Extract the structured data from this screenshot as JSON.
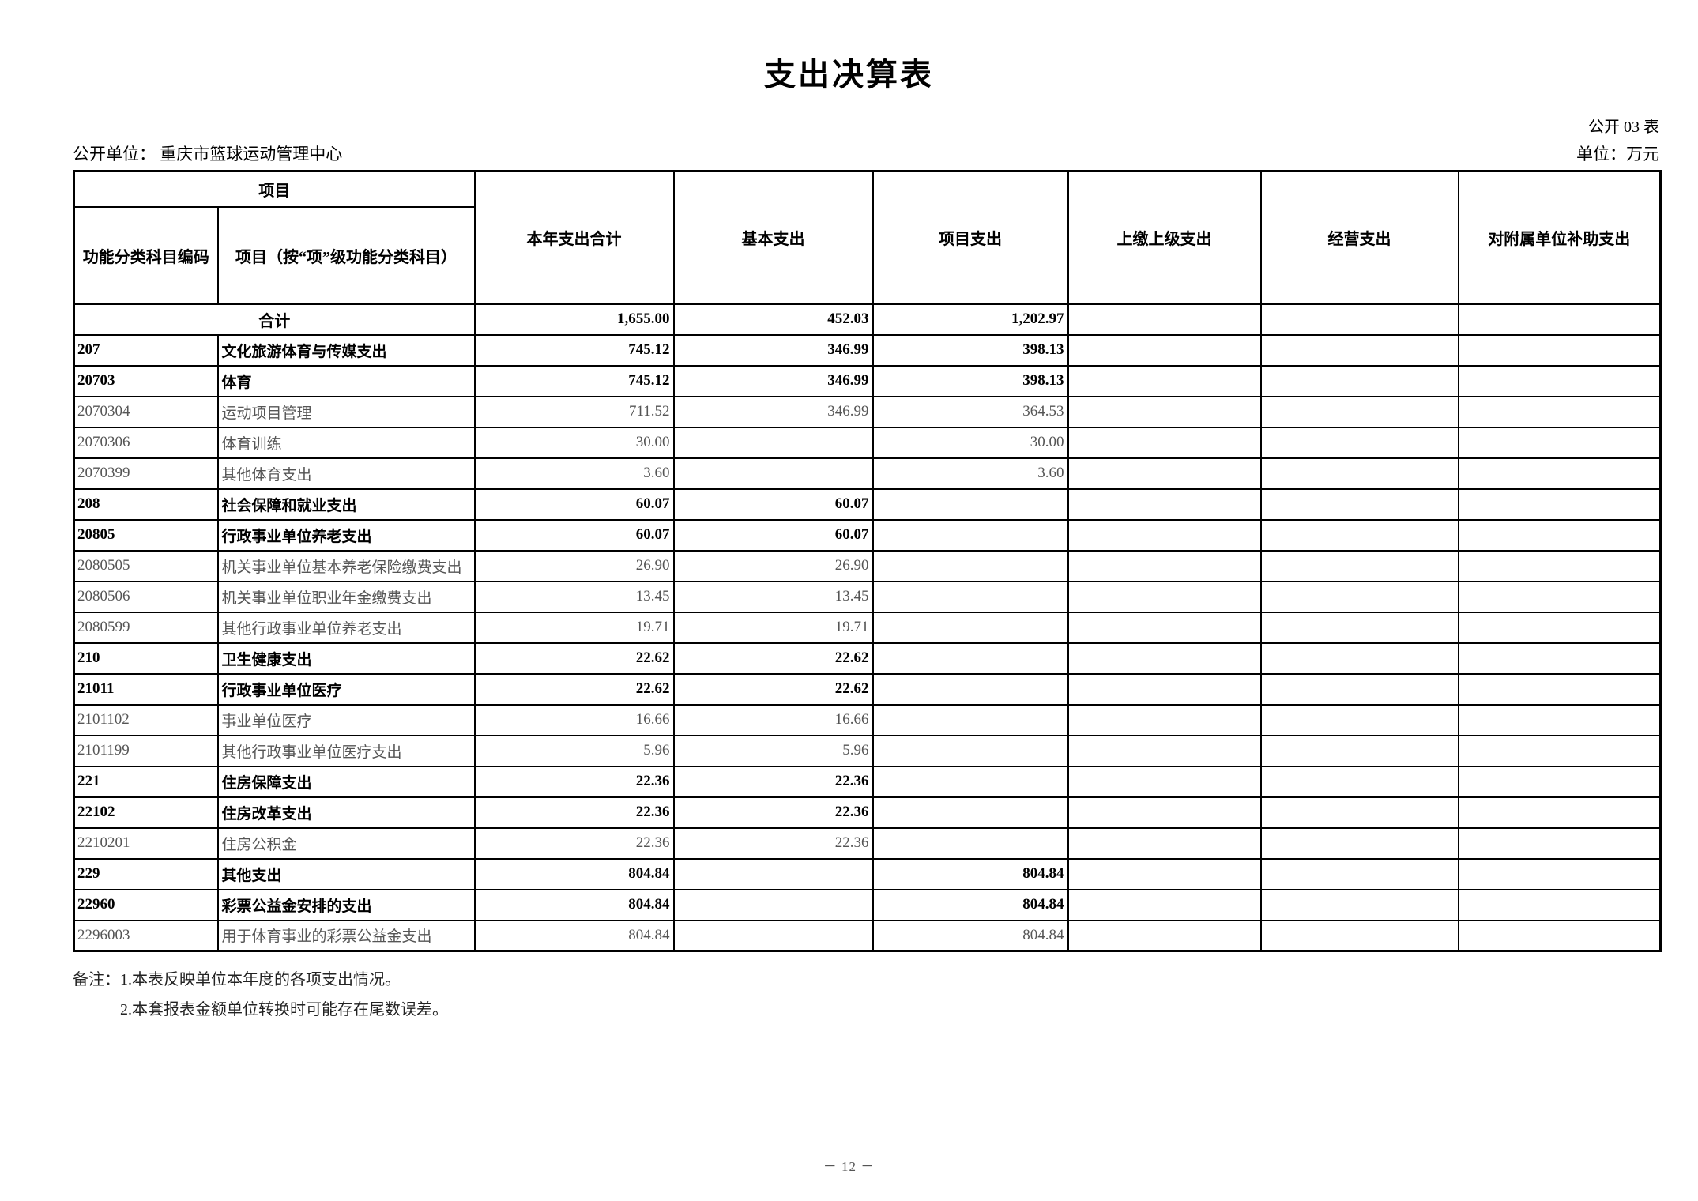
{
  "page": {
    "title": "支出决算表",
    "table_code": "公开 03 表",
    "org_line": "公开单位：  重庆市篮球运动管理中心",
    "unit_label": "单位：万元",
    "page_number": "－ 12 －"
  },
  "colors": {
    "background": "#ffffff",
    "text": "#000000",
    "detail_text": "#555555",
    "border": "#000000"
  },
  "table": {
    "header": {
      "group_label": "项目",
      "col_code": "功能分类科目编码",
      "col_name": "项目（按“项”级功能分类科目）",
      "col_total": "本年支出合计",
      "col_basic": "基本支出",
      "col_project": "项目支出",
      "col_upper": "上缴上级支出",
      "col_operating": "经营支出",
      "col_subsidy": "对附属单位补助支出"
    },
    "rows": [
      {
        "merged": true,
        "bold": true,
        "code": "",
        "name": "合计",
        "total": "1,655.00",
        "basic": "452.03",
        "project": "1,202.97",
        "upper": "",
        "operating": "",
        "subsidy": ""
      },
      {
        "merged": false,
        "bold": true,
        "code": "207",
        "name": "文化旅游体育与传媒支出",
        "total": "745.12",
        "basic": "346.99",
        "project": "398.13",
        "upper": "",
        "operating": "",
        "subsidy": ""
      },
      {
        "merged": false,
        "bold": true,
        "code": "20703",
        "name": "体育",
        "total": "745.12",
        "basic": "346.99",
        "project": "398.13",
        "upper": "",
        "operating": "",
        "subsidy": ""
      },
      {
        "merged": false,
        "bold": false,
        "code": "2070304",
        "name": "运动项目管理",
        "total": "711.52",
        "basic": "346.99",
        "project": "364.53",
        "upper": "",
        "operating": "",
        "subsidy": ""
      },
      {
        "merged": false,
        "bold": false,
        "code": "2070306",
        "name": "体育训练",
        "total": "30.00",
        "basic": "",
        "project": "30.00",
        "upper": "",
        "operating": "",
        "subsidy": ""
      },
      {
        "merged": false,
        "bold": false,
        "code": "2070399",
        "name": "其他体育支出",
        "total": "3.60",
        "basic": "",
        "project": "3.60",
        "upper": "",
        "operating": "",
        "subsidy": ""
      },
      {
        "merged": false,
        "bold": true,
        "code": "208",
        "name": "社会保障和就业支出",
        "total": "60.07",
        "basic": "60.07",
        "project": "",
        "upper": "",
        "operating": "",
        "subsidy": ""
      },
      {
        "merged": false,
        "bold": true,
        "code": "20805",
        "name": "行政事业单位养老支出",
        "total": "60.07",
        "basic": "60.07",
        "project": "",
        "upper": "",
        "operating": "",
        "subsidy": ""
      },
      {
        "merged": false,
        "bold": false,
        "code": "2080505",
        "name": "机关事业单位基本养老保险缴费支出",
        "total": "26.90",
        "basic": "26.90",
        "project": "",
        "upper": "",
        "operating": "",
        "subsidy": ""
      },
      {
        "merged": false,
        "bold": false,
        "code": "2080506",
        "name": "机关事业单位职业年金缴费支出",
        "total": "13.45",
        "basic": "13.45",
        "project": "",
        "upper": "",
        "operating": "",
        "subsidy": ""
      },
      {
        "merged": false,
        "bold": false,
        "code": "2080599",
        "name": "其他行政事业单位养老支出",
        "total": "19.71",
        "basic": "19.71",
        "project": "",
        "upper": "",
        "operating": "",
        "subsidy": ""
      },
      {
        "merged": false,
        "bold": true,
        "code": "210",
        "name": "卫生健康支出",
        "total": "22.62",
        "basic": "22.62",
        "project": "",
        "upper": "",
        "operating": "",
        "subsidy": ""
      },
      {
        "merged": false,
        "bold": true,
        "code": "21011",
        "name": "行政事业单位医疗",
        "total": "22.62",
        "basic": "22.62",
        "project": "",
        "upper": "",
        "operating": "",
        "subsidy": ""
      },
      {
        "merged": false,
        "bold": false,
        "code": "2101102",
        "name": "事业单位医疗",
        "total": "16.66",
        "basic": "16.66",
        "project": "",
        "upper": "",
        "operating": "",
        "subsidy": ""
      },
      {
        "merged": false,
        "bold": false,
        "code": "2101199",
        "name": "其他行政事业单位医疗支出",
        "total": "5.96",
        "basic": "5.96",
        "project": "",
        "upper": "",
        "operating": "",
        "subsidy": ""
      },
      {
        "merged": false,
        "bold": true,
        "code": "221",
        "name": "住房保障支出",
        "total": "22.36",
        "basic": "22.36",
        "project": "",
        "upper": "",
        "operating": "",
        "subsidy": ""
      },
      {
        "merged": false,
        "bold": true,
        "code": "22102",
        "name": "住房改革支出",
        "total": "22.36",
        "basic": "22.36",
        "project": "",
        "upper": "",
        "operating": "",
        "subsidy": ""
      },
      {
        "merged": false,
        "bold": false,
        "code": "2210201",
        "name": "住房公积金",
        "total": "22.36",
        "basic": "22.36",
        "project": "",
        "upper": "",
        "operating": "",
        "subsidy": ""
      },
      {
        "merged": false,
        "bold": true,
        "code": "229",
        "name": "其他支出",
        "total": "804.84",
        "basic": "",
        "project": "804.84",
        "upper": "",
        "operating": "",
        "subsidy": ""
      },
      {
        "merged": false,
        "bold": true,
        "code": "22960",
        "name": "彩票公益金安排的支出",
        "total": "804.84",
        "basic": "",
        "project": "804.84",
        "upper": "",
        "operating": "",
        "subsidy": ""
      },
      {
        "merged": false,
        "bold": false,
        "code": "2296003",
        "name": "用于体育事业的彩票公益金支出",
        "total": "804.84",
        "basic": "",
        "project": "804.84",
        "upper": "",
        "operating": "",
        "subsidy": ""
      }
    ]
  },
  "notes": {
    "line1": "备注：1.本表反映单位本年度的各项支出情况。",
    "line2": "2.本套报表金额单位转换时可能存在尾数误差。"
  }
}
